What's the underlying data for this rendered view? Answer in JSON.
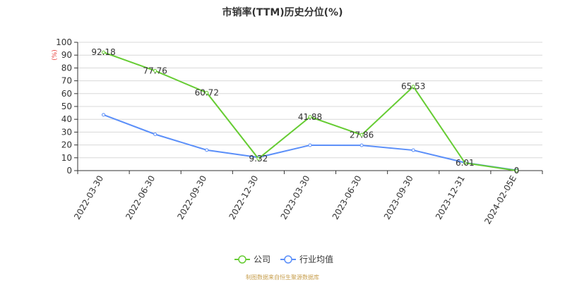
{
  "chart_data": {
    "type": "line",
    "title": "市销率(TTM)历史分位(%)",
    "unit_label": "(%)",
    "categories": [
      "2022-03-30",
      "2022-06-30",
      "2022-09-30",
      "2022-12-30",
      "2023-03-30",
      "2023-06-30",
      "2023-09-30",
      "2023-12-31",
      "2024-02-05E"
    ],
    "ylim": [
      0,
      100
    ],
    "yticks": [
      0,
      10,
      20,
      30,
      40,
      50,
      60,
      70,
      80,
      90,
      100
    ],
    "grid": true,
    "legend_position": "bottom",
    "series": [
      {
        "name": "公司",
        "color": "#66cc33",
        "values": [
          92.18,
          77.76,
          60.72,
          9.32,
          41.88,
          27.86,
          65.53,
          6.01,
          0
        ],
        "labels": [
          "92.18",
          "77.76",
          "60.72",
          "9.32",
          "41.88",
          "27.86",
          "65.53",
          "6.01",
          "0"
        ]
      },
      {
        "name": "行业均值",
        "color": "#5b8ff9",
        "values": [
          43.5,
          28.3,
          16.0,
          10.3,
          19.8,
          19.7,
          15.9,
          6.2,
          0.3
        ]
      }
    ]
  },
  "source_text": "制图数据来自恒生聚源数据库",
  "colors": {
    "unit_label": "#e8413c",
    "source_text": "#c8a050",
    "grid": "#d8d8d8",
    "axis": "#333333"
  }
}
